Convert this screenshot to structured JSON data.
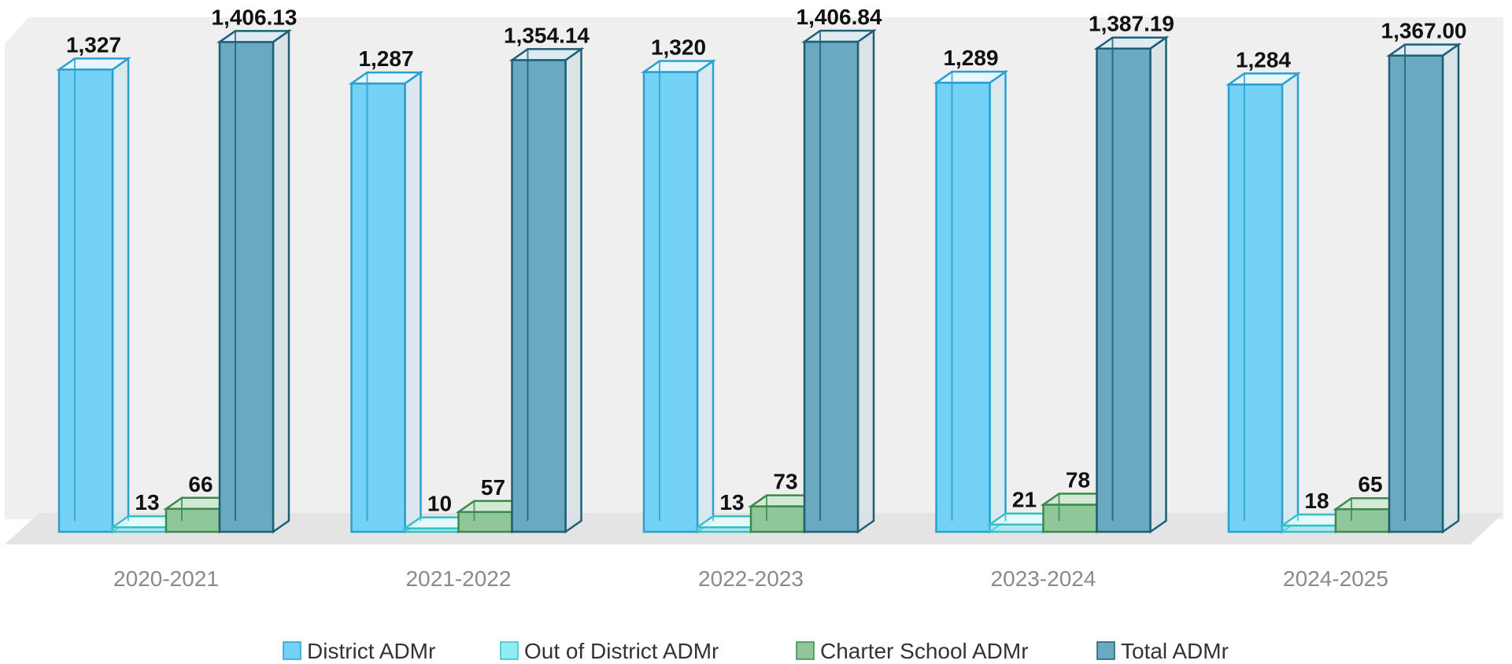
{
  "chart_data": {
    "type": "bar",
    "categories": [
      "2020-2021",
      "2021-2022",
      "2022-2023",
      "2023-2024",
      "2024-2025"
    ],
    "series": [
      {
        "name": "District ADMr",
        "values": [
          1327,
          1287,
          1320,
          1289,
          1284
        ],
        "labels": [
          "1,327",
          "1,287",
          "1,320",
          "1,289",
          "1,284"
        ],
        "color": "#74d2f6"
      },
      {
        "name": "Out of District ADMr",
        "values": [
          13,
          10,
          13,
          21,
          18
        ],
        "labels": [
          "13",
          "10",
          "13",
          "21",
          "18"
        ],
        "color": "#8eecf2"
      },
      {
        "name": "Charter School ADMr",
        "values": [
          66,
          57,
          73,
          78,
          65
        ],
        "labels": [
          "66",
          "57",
          "73",
          "78",
          "65"
        ],
        "color": "#8fc79a"
      },
      {
        "name": "Total ADMr",
        "values": [
          1406.13,
          1354.14,
          1406.84,
          1387.19,
          1367.0
        ],
        "labels": [
          "1,406.13",
          "1,354.14",
          "1,406.84",
          "1,387.19",
          "1,367.00"
        ],
        "color": "#6aa9bf"
      }
    ],
    "title": "",
    "xlabel": "",
    "ylabel": "",
    "ylim": [
      0,
      1406.84
    ],
    "grid": false,
    "three_d": true,
    "legend_position": "bottom"
  }
}
